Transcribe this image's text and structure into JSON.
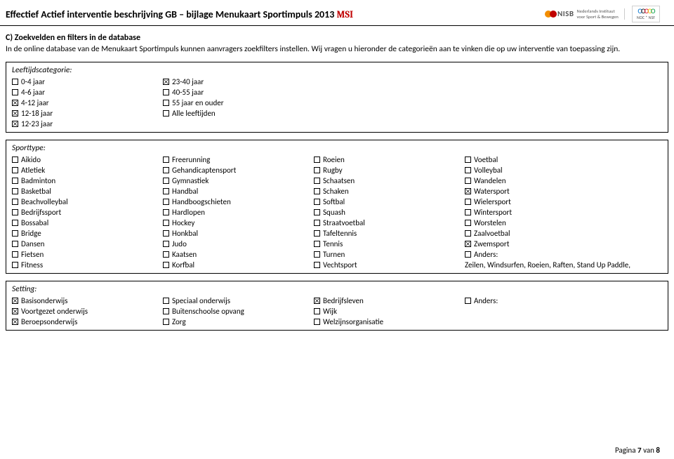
{
  "header": {
    "title_prefix": "Effectief Actief interventie beschrijving GB – bijlage Menukaart Sportimpuls 2013",
    "title_suffix": "MSI",
    "nisb": {
      "big": "NISB",
      "line1": "Nederlands Instituut",
      "line2": "voor Sport & Bewegen"
    },
    "noc": {
      "text": "NOC * NSF"
    },
    "colors": {
      "msi": "#c00000",
      "circle1": "#f28e00",
      "circle2": "#c00000"
    }
  },
  "intro": {
    "heading": "C) Zoekvelden en filters in de database",
    "text": "In de online database van de Menukaart Sportimpuls kunnen aanvragers zoekfilters instellen. Wij vragen u hieronder de categorieën aan te vinken die op uw interventie van toepassing zijn."
  },
  "age": {
    "title": "Leeftijdscategorie:",
    "col1": [
      {
        "label": "0-4 jaar",
        "checked": false
      },
      {
        "label": "4-6 jaar",
        "checked": false
      },
      {
        "label": "4-12 jaar",
        "checked": true
      },
      {
        "label": "12-18 jaar",
        "checked": true
      },
      {
        "label": "12-23 jaar",
        "checked": true
      }
    ],
    "col2": [
      {
        "label": "23-40 jaar",
        "checked": true
      },
      {
        "label": "40-55 jaar",
        "checked": false
      },
      {
        "label": "55 jaar en ouder",
        "checked": false
      },
      {
        "label": "Alle leeftijden",
        "checked": false
      }
    ]
  },
  "sport": {
    "title": "Sporttype:",
    "col1": [
      {
        "label": "Aikido",
        "checked": false
      },
      {
        "label": "Atletiek",
        "checked": false
      },
      {
        "label": "Badminton",
        "checked": false
      },
      {
        "label": "Basketbal",
        "checked": false
      },
      {
        "label": "Beachvolleybal",
        "checked": false
      },
      {
        "label": "Bedrijfssport",
        "checked": false
      },
      {
        "label": "Bossabal",
        "checked": false
      },
      {
        "label": "Bridge",
        "checked": false
      },
      {
        "label": "Dansen",
        "checked": false
      },
      {
        "label": "Fietsen",
        "checked": false
      },
      {
        "label": "Fitness",
        "checked": false
      }
    ],
    "col2": [
      {
        "label": "Freerunning",
        "checked": false
      },
      {
        "label": "Gehandicaptensport",
        "checked": false
      },
      {
        "label": "Gymnastiek",
        "checked": false
      },
      {
        "label": "Handbal",
        "checked": false
      },
      {
        "label": "Handboogschieten",
        "checked": false
      },
      {
        "label": "Hardlopen",
        "checked": false
      },
      {
        "label": "Hockey",
        "checked": false
      },
      {
        "label": "Honkbal",
        "checked": false
      },
      {
        "label": "Judo",
        "checked": false
      },
      {
        "label": "Kaatsen",
        "checked": false
      },
      {
        "label": "Korfbal",
        "checked": false
      }
    ],
    "col3": [
      {
        "label": "Roeien",
        "checked": false
      },
      {
        "label": "Rugby",
        "checked": false
      },
      {
        "label": "Schaatsen",
        "checked": false
      },
      {
        "label": "Schaken",
        "checked": false
      },
      {
        "label": "Softbal",
        "checked": false
      },
      {
        "label": "Squash",
        "checked": false
      },
      {
        "label": "Straatvoetbal",
        "checked": false
      },
      {
        "label": "Tafeltennis",
        "checked": false
      },
      {
        "label": "Tennis",
        "checked": false
      },
      {
        "label": "Turnen",
        "checked": false
      },
      {
        "label": "Vechtsport",
        "checked": false
      }
    ],
    "col4": [
      {
        "label": "Voetbal",
        "checked": false
      },
      {
        "label": "Volleybal",
        "checked": false
      },
      {
        "label": "Wandelen",
        "checked": false
      },
      {
        "label": "Watersport",
        "checked": true
      },
      {
        "label": "Wielersport",
        "checked": false
      },
      {
        "label": "Wintersport",
        "checked": false
      },
      {
        "label": "Worstelen",
        "checked": false
      },
      {
        "label": "Zaalvoetbal",
        "checked": false
      },
      {
        "label": "Zwemsport",
        "checked": true
      },
      {
        "label": "Anders:",
        "checked": false
      }
    ],
    "extra": "Zeilen, Windsurfen, Roeien, Raften, Stand Up Paddle,"
  },
  "setting": {
    "title": "Setting:",
    "col1": [
      {
        "label": "Basisonderwijs",
        "checked": true
      },
      {
        "label": "Voortgezet onderwijs",
        "checked": true
      },
      {
        "label": "Beroepsonderwijs",
        "checked": true
      }
    ],
    "col2": [
      {
        "label": "Speciaal onderwijs",
        "checked": false
      },
      {
        "label": "Buitenschoolse opvang",
        "checked": false
      },
      {
        "label": "Zorg",
        "checked": false
      }
    ],
    "col3": [
      {
        "label": "Bedrijfsleven",
        "checked": true
      },
      {
        "label": "Wijk",
        "checked": false
      },
      {
        "label": "Welzijnsorganisatie",
        "checked": false
      }
    ],
    "col4": [
      {
        "label": "Anders:",
        "checked": false
      }
    ]
  },
  "footer": {
    "label": "Pagina",
    "cur": "7",
    "sep": "van",
    "total": "8"
  },
  "layout": {
    "col_widths_2": [
      215,
      215
    ],
    "col_widths_4": [
      215,
      215,
      215,
      260
    ]
  }
}
